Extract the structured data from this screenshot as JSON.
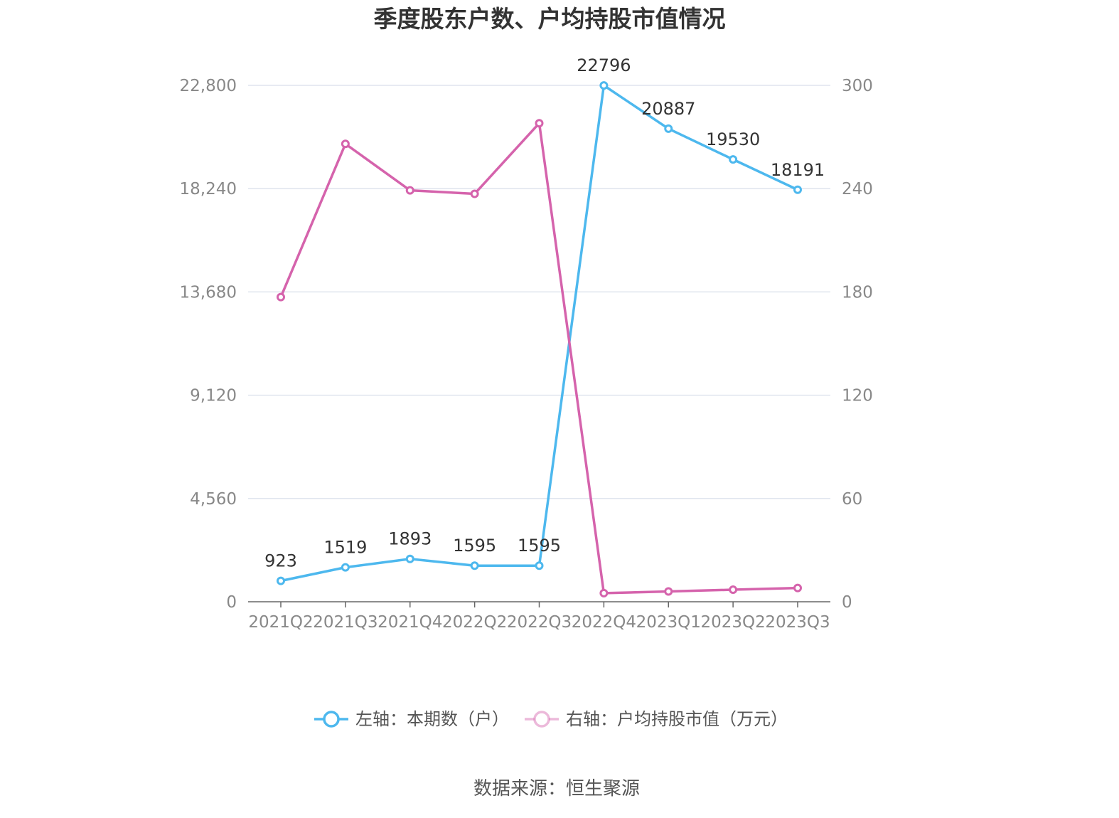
{
  "title": "季度股东户数、户均持股市值情况",
  "source": "数据来源：恒生聚源",
  "chart_data": {
    "type": "line",
    "title": "季度股东户数、户均持股市值情况",
    "categories": [
      "2021Q2",
      "2021Q3",
      "2021Q4",
      "2022Q2",
      "2022Q3",
      "2022Q4",
      "2023Q1",
      "2023Q2",
      "2023Q3"
    ],
    "series": [
      {
        "name": "左轴：本期数（户）",
        "axis": "left",
        "color": "#4db8ee",
        "values": [
          923,
          1519,
          1893,
          1595,
          1595,
          22796,
          20887,
          19530,
          18191
        ],
        "labels": [
          "923",
          "1519",
          "1893",
          "1595",
          "1595",
          "22796",
          "20887",
          "19530",
          "18191"
        ]
      },
      {
        "name": "右轴：户均持股市值（万元）",
        "axis": "right",
        "color": "#d563ac",
        "values": [
          177,
          266,
          239,
          237,
          278,
          5,
          6,
          7,
          8
        ]
      }
    ],
    "y_left": {
      "range": [
        0,
        22800
      ],
      "ticks": [
        0,
        4560,
        9120,
        13680,
        18240,
        22800
      ],
      "tick_labels": [
        "0",
        "4,560",
        "9,120",
        "13,680",
        "18,240",
        "22,800"
      ]
    },
    "y_right": {
      "range": [
        0,
        300
      ],
      "ticks": [
        0,
        60,
        120,
        180,
        240,
        300
      ],
      "tick_labels": [
        "0",
        "60",
        "120",
        "180",
        "240",
        "300"
      ]
    },
    "grid": true,
    "legend_position": "bottom"
  }
}
